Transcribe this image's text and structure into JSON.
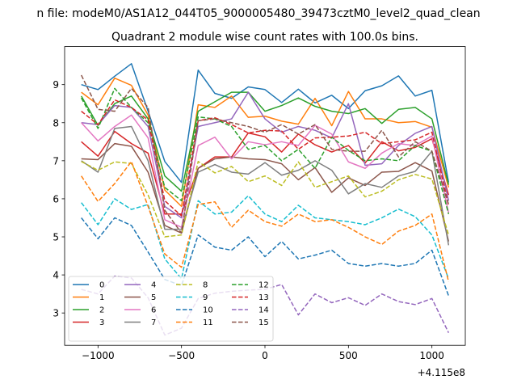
{
  "figure": {
    "suptitle": "n file: modeM0/AS1A12_044T05_9000005480_39473cztM0_level2_quad_clean"
  },
  "chart_data": {
    "type": "line",
    "title": "Quadrant 2 module wise count rates with 100.0s bins.",
    "xlabel": "",
    "ylabel": "",
    "x_offset_label": "+4.115e8",
    "xlim": [
      -1200,
      1200
    ],
    "ylim": [
      2.15,
      10.0
    ],
    "xticks": [
      -1000,
      -500,
      0,
      500,
      1000
    ],
    "xtick_labels": [
      "−1000",
      "−500",
      "0",
      "500",
      "1000"
    ],
    "yticks": [
      3,
      4,
      5,
      6,
      7,
      8,
      9
    ],
    "ytick_labels": [
      "3",
      "4",
      "5",
      "6",
      "7",
      "8",
      "9"
    ],
    "legend_location": "lower-left",
    "legend_ncol": 4,
    "x": [
      -1100,
      -1000,
      -900,
      -800,
      -700,
      -600,
      -500,
      -400,
      -300,
      -200,
      -100,
      0,
      100,
      200,
      300,
      400,
      500,
      600,
      700,
      800,
      900,
      1000,
      1100
    ],
    "series": [
      {
        "name": "0",
        "color": "#1f77b4",
        "dash": "solid",
        "values": [
          9.0,
          8.87,
          9.22,
          9.55,
          8.3,
          6.98,
          6.43,
          9.38,
          8.77,
          8.64,
          8.94,
          8.87,
          8.53,
          8.88,
          8.52,
          8.72,
          8.37,
          8.84,
          8.97,
          9.23,
          8.7,
          8.85,
          6.43
        ]
      },
      {
        "name": "1",
        "color": "#ff7f0e",
        "dash": "solid",
        "values": [
          8.8,
          8.47,
          9.17,
          8.98,
          8.2,
          6.23,
          5.8,
          8.47,
          8.4,
          8.7,
          8.14,
          8.17,
          8.04,
          7.96,
          8.64,
          7.92,
          8.82,
          8.1,
          8.1,
          8.0,
          8.03,
          7.88,
          6.3
        ]
      },
      {
        "name": "2",
        "color": "#2ca02c",
        "dash": "solid",
        "values": [
          8.7,
          7.93,
          8.5,
          8.7,
          8.1,
          6.6,
          6.2,
          8.3,
          8.55,
          8.8,
          8.8,
          8.3,
          8.45,
          8.65,
          8.43,
          8.3,
          8.24,
          8.37,
          7.98,
          8.35,
          8.4,
          8.1,
          6.37
        ]
      },
      {
        "name": "3",
        "color": "#d62728",
        "dash": "solid",
        "values": [
          7.5,
          7.12,
          7.77,
          7.45,
          7.2,
          5.6,
          5.6,
          6.8,
          7.1,
          7.1,
          7.73,
          7.63,
          7.23,
          7.7,
          7.42,
          7.23,
          7.4,
          6.94,
          7.5,
          7.26,
          7.35,
          7.58,
          6.1
        ]
      },
      {
        "name": "4",
        "color": "#9467bd",
        "dash": "solid",
        "values": [
          8.0,
          7.95,
          8.45,
          8.4,
          7.9,
          5.8,
          5.5,
          7.9,
          8.0,
          8.1,
          8.8,
          8.1,
          7.75,
          7.9,
          7.8,
          7.6,
          8.5,
          6.88,
          6.92,
          7.4,
          7.72,
          7.9,
          5.95
        ]
      },
      {
        "name": "5",
        "color": "#8c564b",
        "dash": "solid",
        "values": [
          7.05,
          7.03,
          7.45,
          7.38,
          6.7,
          5.3,
          5.1,
          6.8,
          7.05,
          7.1,
          7.05,
          7.03,
          6.92,
          6.5,
          6.82,
          6.17,
          6.55,
          6.35,
          6.7,
          6.72,
          6.95,
          6.73,
          4.88
        ]
      },
      {
        "name": "6",
        "color": "#e377c2",
        "dash": "solid",
        "values": [
          8.0,
          7.52,
          7.9,
          8.2,
          7.6,
          5.45,
          5.25,
          7.4,
          7.62,
          7.05,
          7.5,
          7.42,
          7.5,
          7.4,
          7.93,
          7.7,
          6.97,
          6.8,
          7.2,
          7.45,
          7.4,
          7.65,
          5.63
        ]
      },
      {
        "name": "7",
        "color": "#7f7f7f",
        "dash": "solid",
        "values": [
          7.0,
          6.7,
          7.85,
          7.9,
          7.0,
          5.2,
          5.2,
          6.7,
          6.9,
          6.7,
          6.65,
          6.95,
          6.62,
          6.75,
          7.0,
          6.75,
          6.13,
          6.4,
          6.3,
          6.6,
          6.72,
          7.25,
          4.78
        ]
      },
      {
        "name": "8",
        "color": "#bcbd22",
        "dash": "dashed",
        "values": [
          6.98,
          6.75,
          6.97,
          6.93,
          6.1,
          5.0,
          5.05,
          6.98,
          6.68,
          6.85,
          6.45,
          6.6,
          6.35,
          6.97,
          6.3,
          6.45,
          6.6,
          6.05,
          6.2,
          6.5,
          6.64,
          6.52,
          5.05
        ]
      },
      {
        "name": "9",
        "color": "#17becf",
        "dash": "dashed",
        "values": [
          5.9,
          5.32,
          6.0,
          5.72,
          5.85,
          4.42,
          3.9,
          5.95,
          5.6,
          5.65,
          6.08,
          5.6,
          5.4,
          5.83,
          5.5,
          5.45,
          5.4,
          5.32,
          5.5,
          5.73,
          5.53,
          5.05,
          3.9
        ]
      },
      {
        "name": "10",
        "color": "#1f77b4",
        "dash": "dashed",
        "values": [
          5.5,
          4.95,
          5.5,
          5.3,
          4.6,
          3.88,
          3.72,
          5.05,
          4.73,
          4.65,
          5.0,
          4.48,
          4.88,
          4.42,
          4.52,
          4.65,
          4.3,
          4.23,
          4.3,
          4.23,
          4.3,
          4.65,
          3.45
        ]
      },
      {
        "name": "11",
        "color": "#ff7f0e",
        "dash": "dashed",
        "values": [
          6.6,
          5.93,
          6.4,
          6.98,
          5.8,
          4.55,
          4.2,
          5.85,
          5.92,
          5.25,
          5.7,
          5.4,
          5.28,
          5.6,
          5.4,
          5.45,
          5.25,
          5.0,
          4.8,
          5.15,
          5.3,
          5.6,
          3.82
        ]
      },
      {
        "name": "12",
        "color": "#2ca02c",
        "dash": "dashed",
        "values": [
          8.65,
          7.85,
          8.9,
          8.4,
          8.0,
          6.3,
          5.95,
          8.15,
          8.1,
          7.9,
          7.3,
          7.4,
          7.0,
          7.3,
          6.8,
          7.62,
          7.27,
          7.0,
          7.05,
          7.0,
          7.4,
          7.25,
          5.6
        ]
      },
      {
        "name": "13",
        "color": "#d62728",
        "dash": "dashed",
        "values": [
          8.3,
          7.95,
          8.6,
          8.4,
          8.07,
          5.95,
          5.55,
          8.05,
          8.13,
          7.95,
          7.73,
          7.8,
          7.78,
          7.3,
          7.6,
          7.62,
          7.65,
          7.75,
          7.45,
          7.5,
          7.55,
          7.75,
          5.82
        ]
      },
      {
        "name": "14",
        "color": "#9467bd",
        "dash": "dashed",
        "values": [
          3.62,
          3.5,
          3.97,
          3.92,
          3.4,
          2.42,
          2.6,
          3.38,
          3.52,
          3.57,
          3.6,
          3.62,
          3.75,
          2.95,
          3.5,
          3.27,
          3.4,
          3.2,
          3.5,
          3.3,
          3.22,
          3.38,
          2.48
        ]
      },
      {
        "name": "15",
        "color": "#8c564b",
        "dash": "dashed",
        "values": [
          9.25,
          8.35,
          8.3,
          8.9,
          8.4,
          5.7,
          5.1,
          8.05,
          8.1,
          8.0,
          7.9,
          7.75,
          7.95,
          7.7,
          7.95,
          7.3,
          7.25,
          7.25,
          7.8,
          7.1,
          7.5,
          7.25,
          5.85
        ]
      }
    ]
  }
}
